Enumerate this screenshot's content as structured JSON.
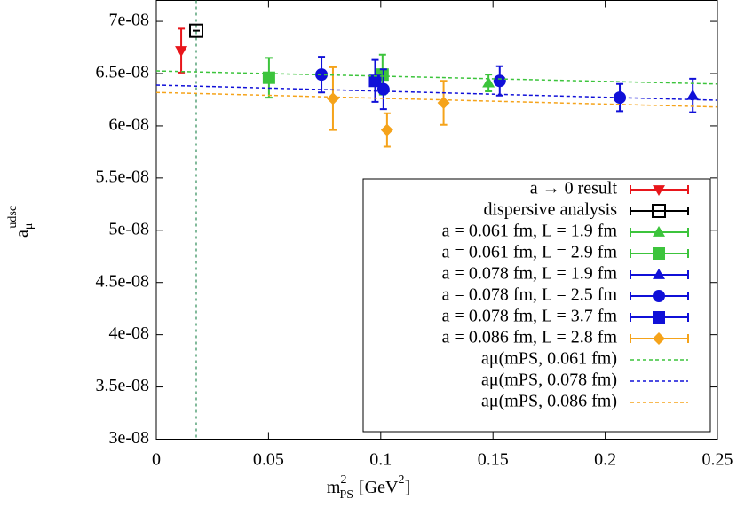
{
  "chart_data": {
    "type": "scatter",
    "x_label": {
      "base": "m",
      "sup": "2",
      "sub": "PS",
      "unit": "[GeV",
      "unit_sup": "2",
      "unit_end": "]"
    },
    "y_label": {
      "base": "a",
      "sub": "μ",
      "sup": "udsc"
    },
    "xlim": [
      0,
      0.25
    ],
    "xticks": [
      0,
      0.05,
      0.1,
      0.15,
      0.2,
      0.25
    ],
    "ylim": [
      3e-08,
      7.2e-08
    ],
    "yticks": [
      {
        "value": 3e-08,
        "label": "3e-08"
      },
      {
        "value": 3.5e-08,
        "label": "3.5e-08"
      },
      {
        "value": 4e-08,
        "label": "4e-08"
      },
      {
        "value": 4.5e-08,
        "label": "4.5e-08"
      },
      {
        "value": 5e-08,
        "label": "5e-08"
      },
      {
        "value": 5.5e-08,
        "label": "5.5e-08"
      },
      {
        "value": 6e-08,
        "label": "6e-08"
      },
      {
        "value": 6.5e-08,
        "label": "6.5e-08"
      },
      {
        "value": 7e-08,
        "label": "7e-08"
      }
    ],
    "reference_x": 0.0178,
    "reference_color": "#2e8b57",
    "legend_position": "lower right",
    "series": [
      {
        "name": "a → 0 result",
        "color": "#e8161b",
        "marker": "triangle-down",
        "x": [
          0.0111
        ],
        "values": [
          6.72e-08
        ],
        "errors": [
          2.1e-09
        ]
      },
      {
        "name": "dispersive analysis",
        "color": "#000000",
        "marker": "square-open",
        "x": [
          0.0178
        ],
        "values": [
          6.91e-08
        ],
        "errors": [
          0
        ]
      },
      {
        "name": "a = 0.061 fm, L = 1.9 fm",
        "color": "#3cc43c",
        "marker": "triangle-up",
        "x": [
          0.148
        ],
        "values": [
          6.41e-08
        ],
        "errors": [
          8e-10
        ]
      },
      {
        "name": "a = 0.061 fm, L = 2.9 fm",
        "color": "#3cc43c",
        "marker": "square",
        "x": [
          0.0502,
          0.1008
        ],
        "values": [
          6.46e-08,
          6.49e-08
        ],
        "errors": [
          1.9e-09,
          1.9e-09
        ]
      },
      {
        "name": "a = 0.078 fm, L = 1.9 fm",
        "color": "#1010d8",
        "marker": "triangle-up",
        "x": [
          0.239
        ],
        "values": [
          6.29e-08
        ],
        "errors": [
          1.6e-09
        ]
      },
      {
        "name": "a = 0.078 fm, L = 2.5 fm",
        "color": "#1010d8",
        "marker": "circle",
        "x": [
          0.0736,
          0.1012,
          0.153,
          0.2065
        ],
        "values": [
          6.49e-08,
          6.35e-08,
          6.43e-08,
          6.27e-08
        ],
        "errors": [
          1.7e-09,
          1.9e-09,
          1.4e-09,
          1.3e-09
        ]
      },
      {
        "name": "a = 0.078 fm, L = 3.7 fm",
        "color": "#1010d8",
        "marker": "square",
        "x": [
          0.0975
        ],
        "values": [
          6.43e-08
        ],
        "errors": [
          2e-09
        ]
      },
      {
        "name": "a = 0.086 fm, L = 2.8 fm",
        "color": "#f5a31a",
        "marker": "diamond",
        "x": [
          0.0787,
          0.1028,
          0.128
        ],
        "values": [
          6.26e-08,
          5.96e-08,
          6.22e-08
        ],
        "errors": [
          3e-09,
          1.6e-09,
          2.1e-09
        ]
      },
      {
        "name": "aμ(mPS, 0.061 fm)",
        "color": "#3cc43c",
        "marker": "dashed-line",
        "x": [
          0,
          0.25
        ],
        "values": [
          6.525e-08,
          6.4e-08
        ]
      },
      {
        "name": "aμ(mPS, 0.078 fm)",
        "color": "#1010d8",
        "marker": "dashed-line",
        "x": [
          0,
          0.25
        ],
        "values": [
          6.39e-08,
          6.245e-08
        ]
      },
      {
        "name": "aμ(mPS, 0.086 fm)",
        "color": "#f5a31a",
        "marker": "dashed-line",
        "x": [
          0,
          0.25
        ],
        "values": [
          6.32e-08,
          6.18e-08
        ]
      }
    ]
  }
}
